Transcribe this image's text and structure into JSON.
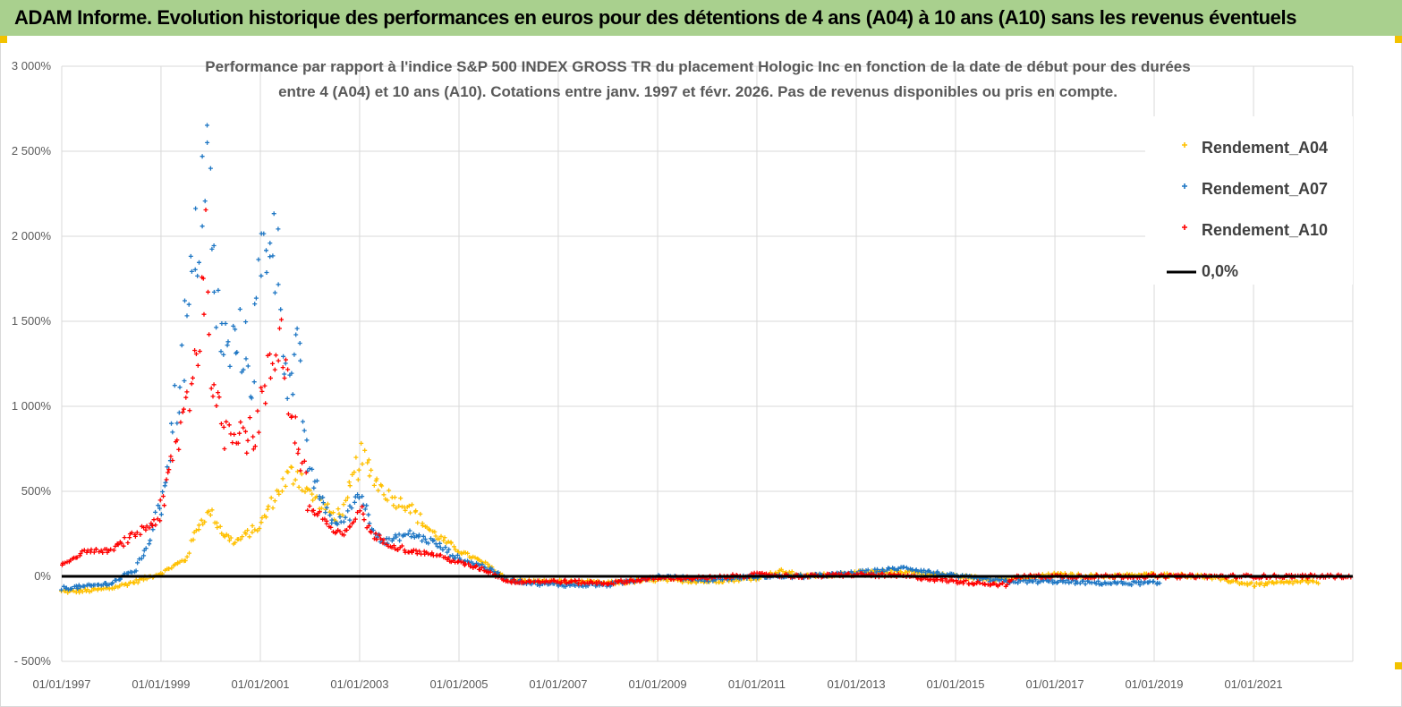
{
  "header": {
    "title": "ADAM Informe. Evolution historique des performances en euros pour des détentions de 4 ans (A04) à 10 ans (A10) sans les revenus éventuels",
    "background": "#a9d08e"
  },
  "chart_data": {
    "type": "scatter",
    "title_lines": [
      "Performance par rapport à l'indice S&P 500 INDEX GROSS TR  du placement Hologic Inc en fonction de la date de début pour des durées",
      "entre 4 (A04) et 10 ans (A10). Cotations entre janv. 1997 et févr. 2026. Pas de revenus disponibles ou pris en compte."
    ],
    "xlabel": "",
    "ylabel": "",
    "x_tick_labels": [
      "01/01/1997",
      "01/01/1999",
      "01/01/2001",
      "01/01/2003",
      "01/01/2005",
      "01/01/2007",
      "01/01/2009",
      "01/01/2011",
      "01/01/2013",
      "01/01/2015",
      "01/01/2017",
      "01/01/2019",
      "01/01/2021"
    ],
    "y_tick_labels": [
      "3 000%",
      "2 500%",
      "2 000%",
      "1 500%",
      "1 000%",
      "500%",
      "0%",
      "- 500%"
    ],
    "ylim": [
      -500,
      3000
    ],
    "xlim": [
      "1997-01-01",
      "2023-01-01"
    ],
    "grid": "vertical and horizontal",
    "legend_position": "top-right",
    "series": [
      {
        "name": "Rendement_A04",
        "color": "#ffc000",
        "marker": "plus",
        "points": [
          [
            "1997-01-01",
            -90
          ],
          [
            "1997-07-01",
            -85
          ],
          [
            "1998-01-01",
            -70
          ],
          [
            "1998-07-01",
            -30
          ],
          [
            "1999-01-01",
            20
          ],
          [
            "1999-07-01",
            100
          ],
          [
            "1999-10-01",
            300
          ],
          [
            "2000-01-01",
            380
          ],
          [
            "2000-04-01",
            250
          ],
          [
            "2000-07-01",
            200
          ],
          [
            "2001-01-01",
            300
          ],
          [
            "2001-04-01",
            450
          ],
          [
            "2001-07-01",
            560
          ],
          [
            "2001-10-01",
            620
          ],
          [
            "2002-01-01",
            480
          ],
          [
            "2002-04-01",
            420
          ],
          [
            "2002-07-01",
            350
          ],
          [
            "2002-10-01",
            420
          ],
          [
            "2003-01-01",
            700
          ],
          [
            "2003-04-01",
            600
          ],
          [
            "2003-07-01",
            500
          ],
          [
            "2003-10-01",
            440
          ],
          [
            "2004-01-01",
            420
          ],
          [
            "2004-04-01",
            320
          ],
          [
            "2004-07-01",
            250
          ],
          [
            "2004-10-01",
            200
          ],
          [
            "2005-01-01",
            150
          ],
          [
            "2005-07-01",
            80
          ],
          [
            "2006-01-01",
            -20
          ],
          [
            "2006-07-01",
            -30
          ],
          [
            "2007-01-01",
            -30
          ],
          [
            "2008-01-01",
            -40
          ],
          [
            "2009-01-01",
            -20
          ],
          [
            "2010-01-01",
            -30
          ],
          [
            "2011-01-01",
            -10
          ],
          [
            "2011-07-01",
            30
          ],
          [
            "2012-01-01",
            0
          ],
          [
            "2013-01-01",
            20
          ],
          [
            "2014-01-01",
            30
          ],
          [
            "2015-01-01",
            0
          ],
          [
            "2016-01-01",
            -20
          ],
          [
            "2017-01-01",
            10
          ],
          [
            "2018-01-01",
            0
          ],
          [
            "2019-01-01",
            10
          ],
          [
            "2020-01-01",
            0
          ],
          [
            "2021-01-01",
            -50
          ],
          [
            "2022-01-01",
            -30
          ],
          [
            "2022-05-01",
            -40
          ]
        ]
      },
      {
        "name": "Rendement_A07",
        "color": "#1f77c4",
        "marker": "plus",
        "points": [
          [
            "1997-01-01",
            -70
          ],
          [
            "1997-07-01",
            -60
          ],
          [
            "1998-01-01",
            -40
          ],
          [
            "1998-07-01",
            40
          ],
          [
            "1998-10-01",
            200
          ],
          [
            "1999-01-01",
            450
          ],
          [
            "1999-04-01",
            900
          ],
          [
            "1999-07-01",
            1400
          ],
          [
            "1999-10-01",
            2000
          ],
          [
            "1999-12-01",
            2550
          ],
          [
            "2000-02-01",
            1600
          ],
          [
            "2000-05-01",
            1300
          ],
          [
            "2000-08-01",
            1400
          ],
          [
            "2000-11-01",
            1200
          ],
          [
            "2001-01-01",
            1800
          ],
          [
            "2001-04-01",
            2100
          ],
          [
            "2001-06-01",
            1600
          ],
          [
            "2001-08-01",
            1100
          ],
          [
            "2001-10-01",
            1300
          ],
          [
            "2002-01-01",
            600
          ],
          [
            "2002-04-01",
            450
          ],
          [
            "2002-07-01",
            300
          ],
          [
            "2002-10-01",
            350
          ],
          [
            "2003-01-01",
            500
          ],
          [
            "2003-04-01",
            300
          ],
          [
            "2003-07-01",
            200
          ],
          [
            "2004-01-01",
            250
          ],
          [
            "2004-07-01",
            200
          ],
          [
            "2005-01-01",
            100
          ],
          [
            "2005-07-01",
            60
          ],
          [
            "2006-01-01",
            -20
          ],
          [
            "2006-07-01",
            -40
          ],
          [
            "2007-01-01",
            -50
          ],
          [
            "2008-01-01",
            -50
          ],
          [
            "2009-01-01",
            0
          ],
          [
            "2010-01-01",
            -20
          ],
          [
            "2011-01-01",
            0
          ],
          [
            "2012-01-01",
            0
          ],
          [
            "2013-01-01",
            20
          ],
          [
            "2014-01-01",
            50
          ],
          [
            "2015-01-01",
            0
          ],
          [
            "2016-01-01",
            -30
          ],
          [
            "2017-01-01",
            -30
          ],
          [
            "2018-01-01",
            -40
          ],
          [
            "2019-01-01",
            -40
          ],
          [
            "2019-03-01",
            -45
          ]
        ]
      },
      {
        "name": "Rendement_A10",
        "color": "#ff0000",
        "marker": "plus",
        "points": [
          [
            "1997-01-01",
            70
          ],
          [
            "1997-07-01",
            150
          ],
          [
            "1998-01-01",
            150
          ],
          [
            "1998-07-01",
            250
          ],
          [
            "1999-01-01",
            350
          ],
          [
            "1999-04-01",
            700
          ],
          [
            "1999-07-01",
            1000
          ],
          [
            "1999-10-01",
            1400
          ],
          [
            "1999-12-01",
            1900
          ],
          [
            "2000-02-01",
            1000
          ],
          [
            "2000-05-01",
            850
          ],
          [
            "2000-08-01",
            900
          ],
          [
            "2000-11-01",
            800
          ],
          [
            "2001-01-01",
            1000
          ],
          [
            "2001-04-01",
            1250
          ],
          [
            "2001-06-01",
            1500
          ],
          [
            "2001-08-01",
            1000
          ],
          [
            "2001-10-01",
            800
          ],
          [
            "2002-01-01",
            400
          ],
          [
            "2002-04-01",
            350
          ],
          [
            "2002-07-01",
            250
          ],
          [
            "2002-10-01",
            250
          ],
          [
            "2003-01-01",
            400
          ],
          [
            "2003-04-01",
            250
          ],
          [
            "2003-07-01",
            200
          ],
          [
            "2004-01-01",
            150
          ],
          [
            "2004-07-01",
            130
          ],
          [
            "2005-01-01",
            80
          ],
          [
            "2005-07-01",
            40
          ],
          [
            "2006-01-01",
            -30
          ],
          [
            "2007-01-01",
            -30
          ],
          [
            "2008-01-01",
            -40
          ],
          [
            "2009-01-01",
            -10
          ],
          [
            "2010-01-01",
            -10
          ],
          [
            "2011-01-01",
            10
          ],
          [
            "2012-01-01",
            0
          ],
          [
            "2013-01-01",
            10
          ],
          [
            "2014-01-01",
            0
          ],
          [
            "2015-01-01",
            -30
          ],
          [
            "2016-01-01",
            -50
          ],
          [
            "2016-04-01",
            0
          ],
          [
            "2017-01-01",
            0
          ],
          [
            "2018-01-01",
            0
          ],
          [
            "2019-01-01",
            0
          ],
          [
            "2020-01-01",
            0
          ],
          [
            "2021-01-01",
            0
          ],
          [
            "2022-01-01",
            0
          ],
          [
            "2023-01-01",
            0
          ]
        ]
      },
      {
        "name": "0,0%",
        "color": "#000000",
        "marker": "line",
        "points": [
          [
            "1997-01-01",
            0
          ],
          [
            "2023-01-01",
            0
          ]
        ]
      }
    ]
  }
}
